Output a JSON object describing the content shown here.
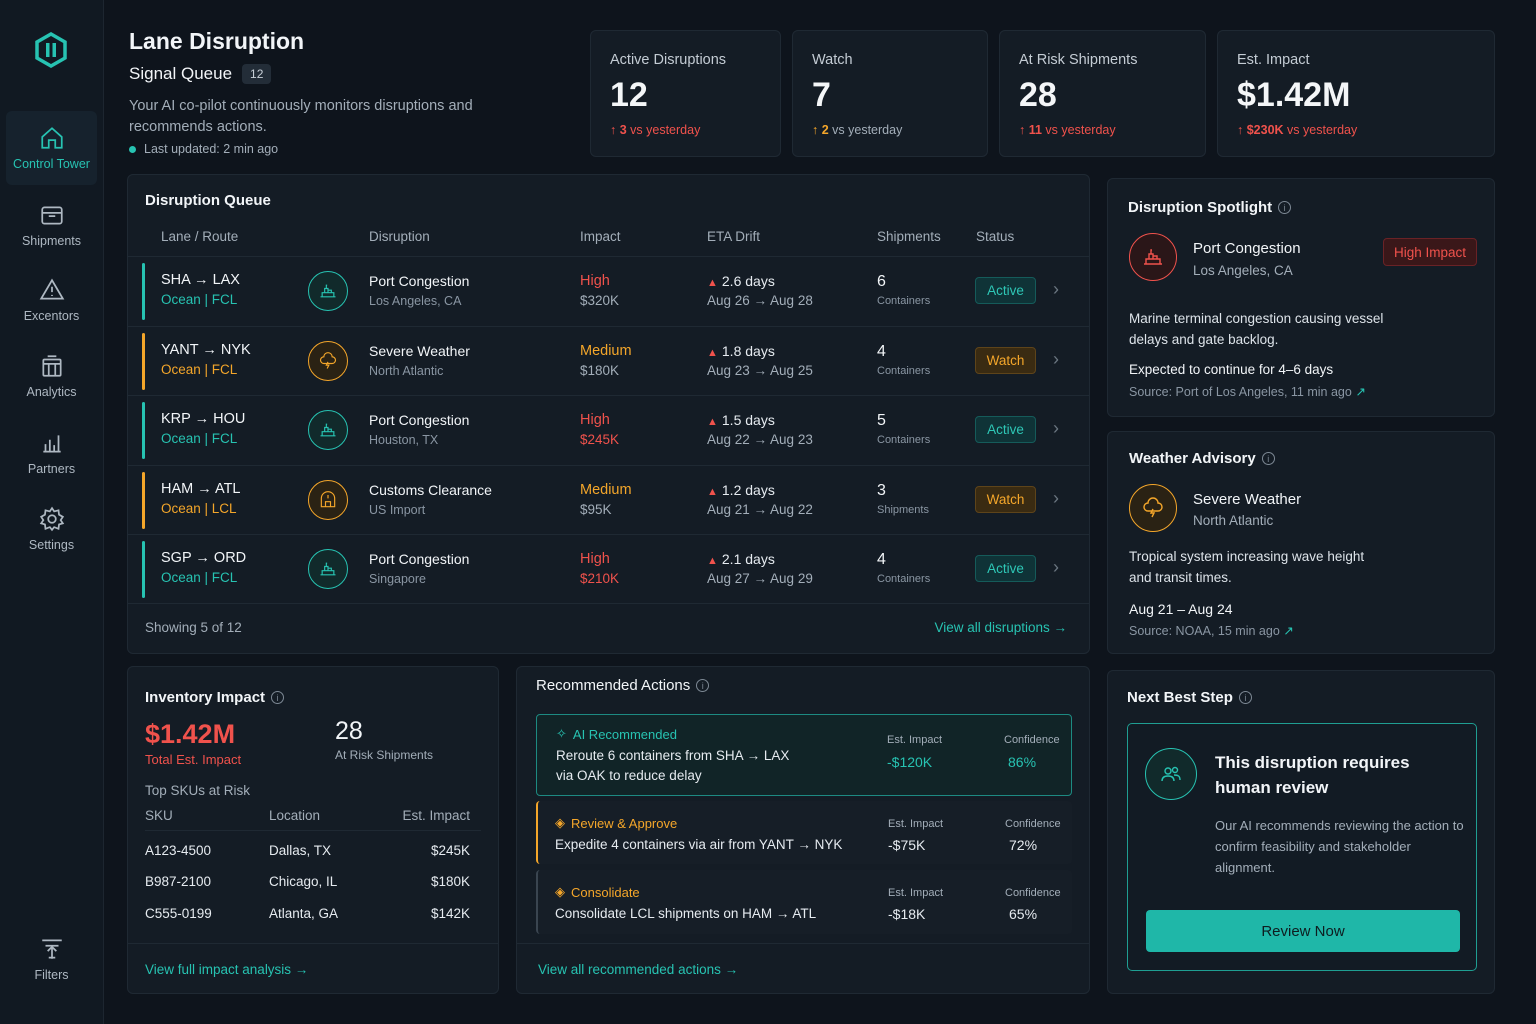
{
  "nav": {
    "items": [
      {
        "label": "Control Tower"
      },
      {
        "label": "Shipments"
      },
      {
        "label": "Excentors"
      },
      {
        "label": "Analytics"
      },
      {
        "label": "Partners"
      },
      {
        "label": "Settings"
      }
    ],
    "filters_label": "Filters"
  },
  "header": {
    "title": "Lane Disruption",
    "subtitle": "Signal Queue",
    "queue_count": "12",
    "description": "Your AI co-pilot continuously monitors disruptions and recommends actions.",
    "last_updated": "Last updated: 2 min ago"
  },
  "kpis": [
    {
      "label": "Active Disruptions",
      "value": "12",
      "delta": "3",
      "delta_suffix": " vs yesterday",
      "color": "#f0524c"
    },
    {
      "label": "Watch",
      "value": "7",
      "delta": "2",
      "delta_suffix": " vs yesterday",
      "color": "#f4a62a"
    },
    {
      "label": "At Risk Shipments",
      "value": "28",
      "delta": "11",
      "delta_suffix": " vs yesterday",
      "color": "#f0524c"
    },
    {
      "label": "Est. Impact",
      "value": "$1.42M",
      "delta": "$230K",
      "delta_suffix": " vs yesterday",
      "color": "#f0524c"
    }
  ],
  "queue": {
    "title": "Disruption Queue",
    "columns": [
      "Lane / Route",
      "Disruption",
      "Impact",
      "ETA Drift",
      "Shipments",
      "Status"
    ],
    "rows": [
      {
        "route": "SHA → LAX",
        "mode": "Ocean | FCL",
        "mode_color": "#27c3b2",
        "icon": "port-icon",
        "disruption": "Port Congestion",
        "location": "Los Angeles, CA",
        "impact": "High",
        "impact_color": "#f0524c",
        "amount": "$320K",
        "amount_color": "#a3aeb9",
        "drift": "2.6 days",
        "dates": "Aug 26 → Aug 28",
        "shipments": "6",
        "unit": "Containers",
        "status": "Active",
        "status_kind": "active",
        "bar_color": "#27c3b2"
      },
      {
        "route": "YANT → NYK",
        "mode": "Ocean | FCL",
        "mode_color": "#f4a62a",
        "icon": "weather-icon",
        "disruption": "Severe Weather",
        "location": "North Atlantic",
        "impact": "Medium",
        "impact_color": "#f4a62a",
        "amount": "$180K",
        "amount_color": "#a3aeb9",
        "drift": "1.8 days",
        "dates": "Aug 23 → Aug 25",
        "shipments": "4",
        "unit": "Containers",
        "status": "Watch",
        "status_kind": "watch",
        "bar_color": "#f4a62a"
      },
      {
        "route": "KRP → HOU",
        "mode": "Ocean | FCL",
        "mode_color": "#27c3b2",
        "icon": "port-icon",
        "disruption": "Port Congestion",
        "location": "Houston, TX",
        "impact": "High",
        "impact_color": "#f0524c",
        "amount": "$245K",
        "amount_color": "#f0524c",
        "drift": "1.5 days",
        "dates": "Aug 22 → Aug 23",
        "shipments": "5",
        "unit": "Containers",
        "status": "Active",
        "status_kind": "active",
        "bar_color": "#27c3b2"
      },
      {
        "route": "HAM → ATL",
        "mode": "Ocean | LCL",
        "mode_color": "#f4a62a",
        "icon": "customs-icon",
        "disruption": "Customs Clearance",
        "location": "US Import",
        "impact": "Medium",
        "impact_color": "#f4a62a",
        "amount": "$95K",
        "amount_color": "#a3aeb9",
        "drift": "1.2 days",
        "dates": "Aug 21 → Aug 22",
        "shipments": "3",
        "unit": "Shipments",
        "status": "Watch",
        "status_kind": "watch",
        "bar_color": "#f4a62a"
      },
      {
        "route": "SGP → ORD",
        "mode": "Ocean | FCL",
        "mode_color": "#27c3b2",
        "icon": "port-icon",
        "disruption": "Port Congestion",
        "location": "Singapore",
        "impact": "High",
        "impact_color": "#f0524c",
        "amount": "$210K",
        "amount_color": "#f0524c",
        "drift": "2.1 days",
        "dates": "Aug 27 → Aug 29",
        "shipments": "4",
        "unit": "Containers",
        "status": "Active",
        "status_kind": "active",
        "bar_color": "#27c3b2"
      }
    ],
    "footer": "Showing 5 of 12",
    "view_all": "View all disruptions →"
  },
  "spotlight": {
    "title": "Disruption Spotlight",
    "name": "Port Congestion",
    "location": "Los Angeles, CA",
    "badge": "High Impact",
    "description": "Marine terminal congestion causing vessel delays and gate backlog.",
    "expected": "Expected to continue for 4–6 days",
    "source": "Source: Port of Los Angeles, 11 min ago"
  },
  "weather": {
    "title": "Weather Advisory",
    "name": "Severe Weather",
    "location": "North Atlantic",
    "description": "Tropical system increasing wave height and transit times.",
    "dates": "Aug 21 – Aug 24",
    "source": "Source: NOAA, 15 min ago"
  },
  "inventory": {
    "title": "Inventory Impact",
    "total": "$1.42M",
    "total_label": "Total Est. Impact",
    "at_risk": "28",
    "at_risk_label": "At Risk Shipments",
    "top_label": "Top SKUs at Risk",
    "columns": [
      "SKU",
      "Location",
      "Est. Impact"
    ],
    "rows": [
      {
        "sku": "A123-4500",
        "location": "Dallas, TX",
        "impact": "$245K"
      },
      {
        "sku": "B987-2100",
        "location": "Chicago, IL",
        "impact": "$180K"
      },
      {
        "sku": "C555-0199",
        "location": "Atlanta, GA",
        "impact": "$142K"
      }
    ],
    "link": "View full impact analysis →"
  },
  "actions": {
    "title": "Recommended Actions",
    "impact_label": "Est. Impact",
    "confidence_label": "Confidence",
    "items": [
      {
        "tag": "AI Recommended",
        "tag_color": "#27c3b2",
        "desc": "Reroute 6 containers from SHA → LAX via OAK to reduce delay",
        "impact": "-$120K",
        "impact_color": "#27c3b2",
        "confidence": "86%",
        "confidence_color": "#27c3b2"
      },
      {
        "tag": "Review & Approve",
        "tag_color": "#f4a62a",
        "desc": "Expedite 4 containers via air from YANT → NYK",
        "impact": "-$75K",
        "impact_color": "#e6ebf0",
        "confidence": "72%",
        "confidence_color": "#e6ebf0"
      },
      {
        "tag": "Consolidate",
        "tag_color": "#f4a62a",
        "desc": "Consolidate LCL shipments on HAM → ATL",
        "impact": "-$18K",
        "impact_color": "#e6ebf0",
        "confidence": "65%",
        "confidence_color": "#e6ebf0"
      }
    ],
    "link": "View all recommended actions →"
  },
  "next_step": {
    "title": "Next Best Step",
    "heading": "This disruption requires human review",
    "description": "Our AI recommends reviewing the action to confirm feasibility and stakeholder alignment.",
    "button": "Review Now"
  }
}
